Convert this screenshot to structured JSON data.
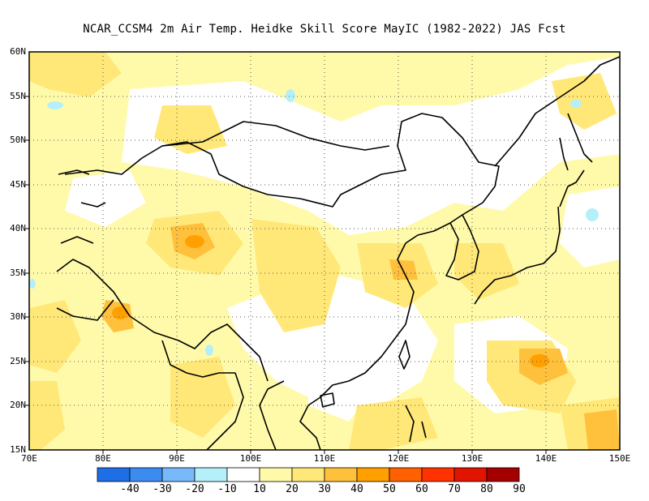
{
  "title": "NCAR_CCSM4  2m Air Temp. Heidke Skill Score MayIC (1982-2022) JAS Fcst",
  "lat_labels": [
    "60N",
    "55N",
    "50N",
    "45N",
    "40N",
    "35N",
    "30N",
    "25N",
    "20N",
    "15N"
  ],
  "lon_labels": [
    "70E",
    "80E",
    "90E",
    "100E",
    "110E",
    "120E",
    "130E",
    "140E",
    "150E"
  ],
  "colorbar": {
    "labels": [
      "-40",
      "-30",
      "-20",
      "-10",
      "10",
      "20",
      "30",
      "40",
      "50",
      "60",
      "70",
      "80",
      "90"
    ],
    "colors": [
      "#1e6ee6",
      "#3c8cf0",
      "#78b9fa",
      "#b4f0fa",
      "#ffffff",
      "#fffaaa",
      "#ffe878",
      "#ffc03c",
      "#ffa000",
      "#ff6000",
      "#ff3200",
      "#e11400",
      "#a50000"
    ]
  },
  "map": {
    "region": {
      "lon": [
        70,
        150
      ],
      "lat": [
        15,
        60
      ]
    },
    "grid": "dotted",
    "variable": "Heidke Skill Score"
  }
}
